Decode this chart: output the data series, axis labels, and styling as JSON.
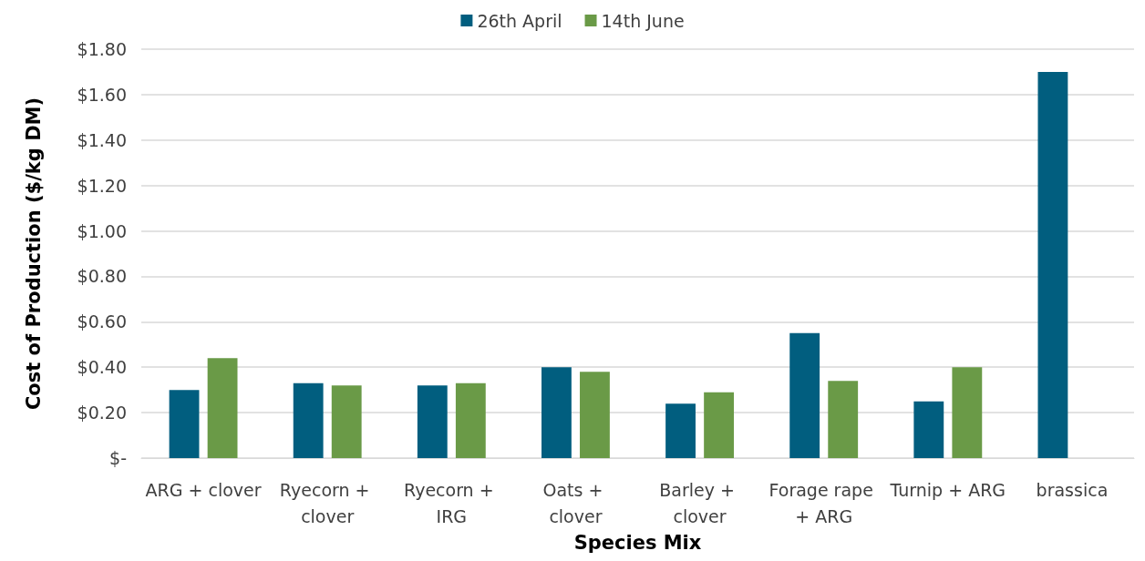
{
  "chart_data": {
    "type": "bar",
    "xlabel": "Species Mix",
    "ylabel": "Cost of Production ($/kg DM)",
    "categories": [
      "ARG + clover",
      "Ryecorn + clover",
      "Ryecorn + IRG",
      "Oats + clover",
      "Barley + clover",
      "Forage rape + ARG",
      "Turnip + ARG",
      "brassica"
    ],
    "series": [
      {
        "name": "26th April",
        "color": "#015e7f",
        "values": [
          0.3,
          0.33,
          0.32,
          0.4,
          0.24,
          0.55,
          0.25,
          1.7
        ]
      },
      {
        "name": "14th June",
        "color": "#6a9a47",
        "values": [
          0.44,
          0.32,
          0.33,
          0.38,
          0.29,
          0.34,
          0.4,
          null
        ]
      }
    ],
    "ylim": [
      0,
      1.8
    ],
    "yticks": [
      {
        "value": 0,
        "label": "$-"
      },
      {
        "value": 0.2,
        "label": "$0.20"
      },
      {
        "value": 0.4,
        "label": "$0.40"
      },
      {
        "value": 0.6,
        "label": "$0.60"
      },
      {
        "value": 0.8,
        "label": "$0.80"
      },
      {
        "value": 1,
        "label": "$1.00"
      },
      {
        "value": 1.2,
        "label": "$1.20"
      },
      {
        "value": 1.4,
        "label": "$1.40"
      },
      {
        "value": 1.6,
        "label": "$1.60"
      },
      {
        "value": 1.8,
        "label": "$1.80"
      }
    ],
    "grid": "y",
    "legend": "top"
  }
}
